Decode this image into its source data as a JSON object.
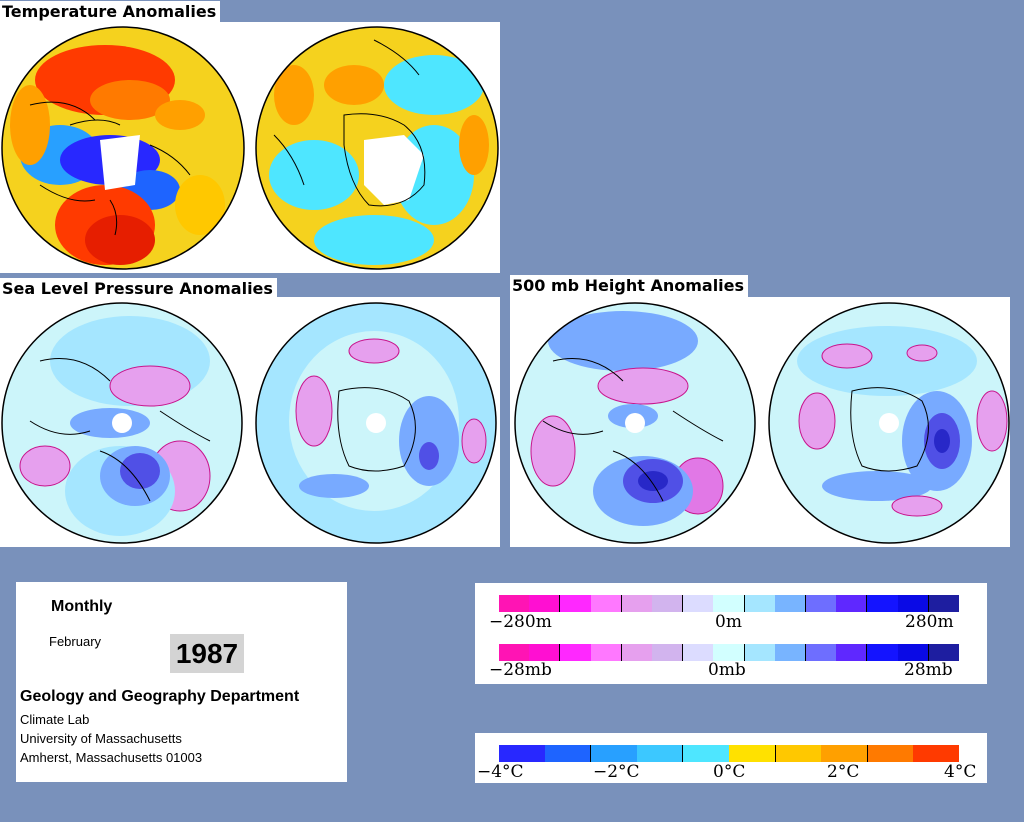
{
  "titles": {
    "temperature": "Temperature Anomalies",
    "slp": "Sea Level Pressure Anomalies",
    "height": "500 mb Height Anomalies"
  },
  "info": {
    "period": "Monthly",
    "month": "February",
    "year": "1987",
    "department": "Geology and Geography Department",
    "lab": "Climate Lab",
    "university": "University of Massachusetts",
    "address": "Amherst, Massachusetts 01003"
  },
  "legends": {
    "height_pressure_colors": [
      "#ff14b4",
      "#ff0fd2",
      "#ff28ff",
      "#ff78ff",
      "#e6a0ee",
      "#d2b4ee",
      "#dcdcff",
      "#d2ffff",
      "#a5e6ff",
      "#78b4ff",
      "#6e6eff",
      "#5f28ff",
      "#1414ff",
      "#0a0ae6",
      "#1e1ea0"
    ],
    "height": {
      "min_label": "−280m",
      "mid_label": "0m",
      "max_label": "280m"
    },
    "pressure": {
      "min_label": "−28mb",
      "mid_label": "0mb",
      "max_label": "28mb"
    },
    "temperature_colors": [
      "#2828ff",
      "#1e64ff",
      "#28a0ff",
      "#3cc8ff",
      "#4ee6ff",
      "#ffe100",
      "#ffc800",
      "#ffa000",
      "#ff7a00",
      "#ff3a00"
    ],
    "temperature": {
      "labels": [
        "−4°C",
        "−2°C",
        "0°C",
        "2°C",
        "4°C"
      ]
    }
  },
  "palettes": {
    "temp_base": "#f5d21e",
    "slp_base": "#9bdcf2",
    "light_cyan": "#ccf5fa",
    "mid_blue": "#78aaff",
    "deep_blue": "#5050e6",
    "pink": "#e6a0ee",
    "magenta": "#e178e6"
  }
}
